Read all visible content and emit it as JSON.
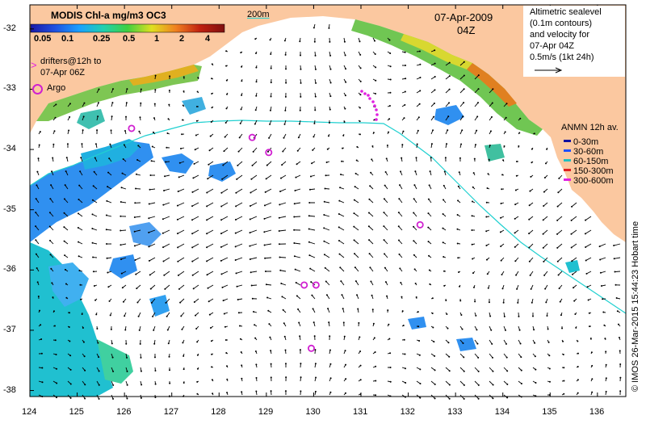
{
  "title": {
    "product": "MODIS Chl-a mg/m3 OC3",
    "date": "07-Apr-2009",
    "time": "04Z",
    "contour_label": "200m"
  },
  "colorbar": {
    "ticks": [
      "0.05",
      "0.1",
      "0.25",
      "0.5",
      "1",
      "2",
      "4"
    ],
    "colors": [
      "#1a1aa8",
      "#2050e0",
      "#1aa0ff",
      "#20d0b0",
      "#40d040",
      "#e0e020",
      "#f08020",
      "#c02010",
      "#801010"
    ]
  },
  "legend_left": {
    "drifters_symbol": ">",
    "drifters_line1": "drifters@12h to",
    "drifters_line2": "07-Apr 06Z",
    "argo": "Argo"
  },
  "info_box": {
    "line1": "Altimetric sealevel",
    "line2": "(0.1m contours)",
    "line3": "and velocity for",
    "line4": "07-Apr 04Z",
    "line5": "0.5m/s (1kt 24h)"
  },
  "anmn": {
    "title": "ANMN 12h av.",
    "items": [
      {
        "label": "0-30m",
        "color": "#1010a0"
      },
      {
        "label": "30-60m",
        "color": "#2050ff"
      },
      {
        "label": "60-150m",
        "color": "#20c0c0"
      },
      {
        "label": "150-300m",
        "color": "#e02020"
      },
      {
        "label": "300-600m",
        "color": "#e020e0"
      }
    ]
  },
  "axes": {
    "lat_ticks": [
      "-32",
      "-33",
      "-34",
      "-35",
      "-36",
      "-37",
      "-38"
    ],
    "lon_ticks": [
      "124",
      "125",
      "126",
      "127",
      "128",
      "129",
      "130",
      "131",
      "132",
      "133",
      "134",
      "135",
      "136"
    ]
  },
  "argo_floats": [
    {
      "lon": 126.15,
      "lat": -33.65
    },
    {
      "lon": 128.7,
      "lat": -33.8
    },
    {
      "lon": 129.05,
      "lat": -34.05
    },
    {
      "lon": 132.25,
      "lat": -35.25
    },
    {
      "lon": 129.8,
      "lat": -36.25
    },
    {
      "lon": 130.05,
      "lat": -36.25
    },
    {
      "lon": 129.95,
      "lat": -37.3
    }
  ],
  "credit": "© IMOS 26-Mar-2015 15:44:23 Hobart time",
  "colors": {
    "land": "#fbc8a0",
    "contour": "#20d0d0",
    "argo": "#d020d0",
    "arrow": "#000000"
  }
}
